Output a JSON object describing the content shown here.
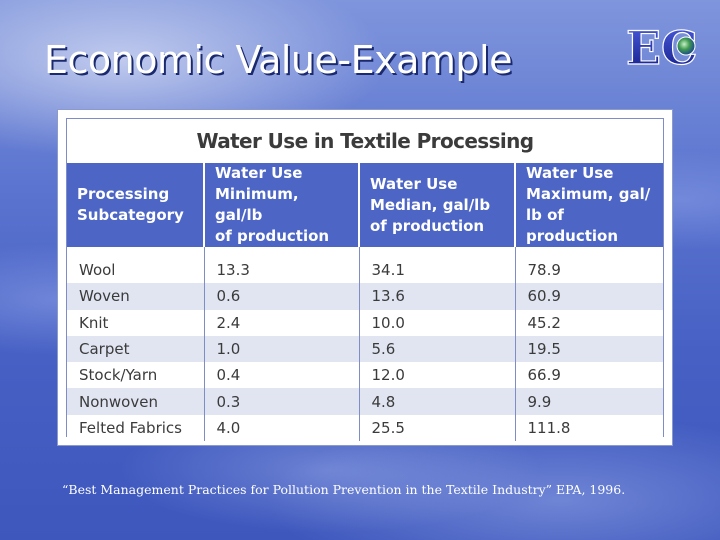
{
  "slide": {
    "title": "Economic Value-Example",
    "citation": "“Best Management Practices for Pollution Prevention in the Textile Industry” EPA, 1996."
  },
  "logo": {
    "letters": "EC",
    "colors": {
      "letter": "#1e2fb0",
      "globe": "#3a8a3a"
    }
  },
  "table": {
    "title": "Water Use in Textile Processing",
    "headers": [
      [
        "Processing",
        "Subcategory"
      ],
      [
        "Water Use",
        "Minimum, gal/lb",
        "of production"
      ],
      [
        "Water Use",
        "Median, gal/lb",
        "of production"
      ],
      [
        "Water Use",
        "Maximum, gal/",
        "lb of production"
      ]
    ],
    "rows": [
      [
        "Wool",
        "13.3",
        "34.1",
        "78.9"
      ],
      [
        "Woven",
        "0.6",
        "13.6",
        "60.9"
      ],
      [
        "Knit",
        "2.4",
        "10.0",
        "45.2"
      ],
      [
        "Carpet",
        "1.0",
        "5.6",
        "19.5"
      ],
      [
        "Stock/Yarn",
        "0.4",
        "12.0",
        "66.9"
      ],
      [
        "Nonwoven",
        "0.3",
        "4.8",
        "9.9"
      ],
      [
        "Felted Fabrics",
        "4.0",
        "25.5",
        "111.8"
      ]
    ],
    "colors": {
      "header_bg": "#4d66c5",
      "stripe": "#e1e5f2",
      "text": "#3b3b3b"
    }
  }
}
